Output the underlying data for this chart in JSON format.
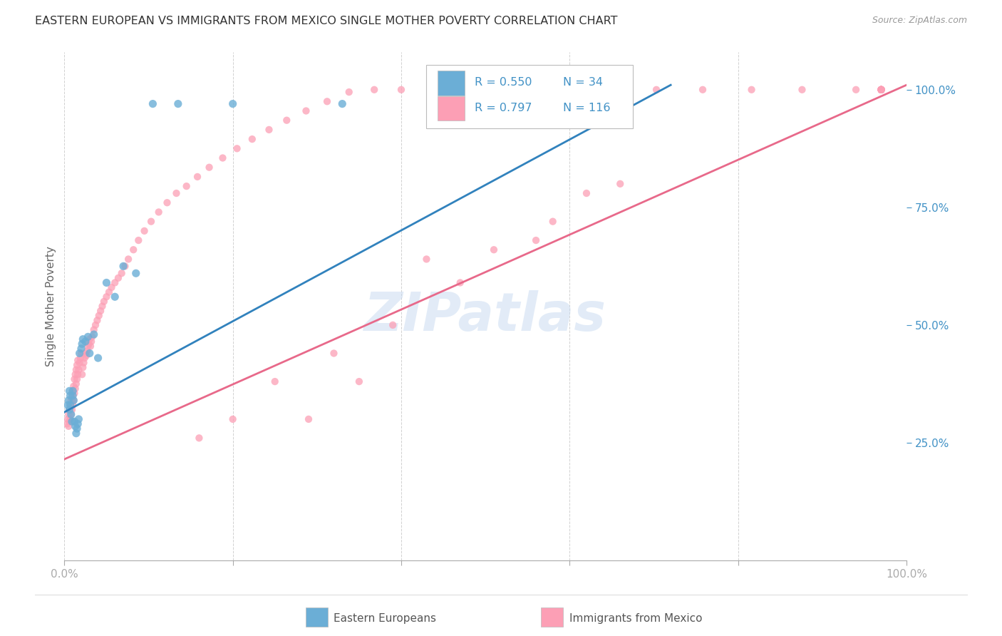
{
  "title": "EASTERN EUROPEAN VS IMMIGRANTS FROM MEXICO SINGLE MOTHER POVERTY CORRELATION CHART",
  "source": "Source: ZipAtlas.com",
  "ylabel": "Single Mother Poverty",
  "xlim": [
    0,
    1.0
  ],
  "ylim": [
    0,
    1.08
  ],
  "xtick_positions": [
    0.0,
    0.2,
    0.4,
    0.6,
    0.8,
    1.0
  ],
  "xticklabels": [
    "0.0%",
    "",
    "",
    "",
    "",
    "100.0%"
  ],
  "ytick_labels_right": [
    "25.0%",
    "50.0%",
    "75.0%",
    "100.0%"
  ],
  "ytick_values_right": [
    0.25,
    0.5,
    0.75,
    1.0
  ],
  "watermark": "ZIPatlas",
  "legend_r1": "R = 0.550",
  "legend_n1": "N = 34",
  "legend_r2": "R = 0.797",
  "legend_n2": "N = 116",
  "blue_color": "#6baed6",
  "pink_color": "#fc9fb5",
  "blue_line_color": "#3182bd",
  "pink_line_color": "#e8698a",
  "right_tick_color": "#4292c6",
  "grid_color": "#cccccc",
  "background_color": "#ffffff",
  "blue_line": {
    "x0": 0.0,
    "y0": 0.315,
    "x1": 0.72,
    "y1": 1.01
  },
  "pink_line": {
    "x0": 0.0,
    "y0": 0.215,
    "x1": 1.0,
    "y1": 1.01
  },
  "blue_x": [
    0.004,
    0.005,
    0.006,
    0.006,
    0.007,
    0.007,
    0.008,
    0.009,
    0.01,
    0.01,
    0.011,
    0.012,
    0.013,
    0.014,
    0.015,
    0.016,
    0.017,
    0.018,
    0.02,
    0.021,
    0.022,
    0.025,
    0.028,
    0.03,
    0.035,
    0.04,
    0.05,
    0.06,
    0.07,
    0.085,
    0.105,
    0.135,
    0.2,
    0.33
  ],
  "blue_y": [
    0.33,
    0.34,
    0.32,
    0.36,
    0.35,
    0.33,
    0.31,
    0.295,
    0.35,
    0.36,
    0.34,
    0.295,
    0.285,
    0.27,
    0.28,
    0.29,
    0.3,
    0.44,
    0.45,
    0.46,
    0.47,
    0.465,
    0.475,
    0.44,
    0.48,
    0.43,
    0.59,
    0.56,
    0.625,
    0.61,
    0.97,
    0.97,
    0.97,
    0.97
  ],
  "pink_x": [
    0.003,
    0.004,
    0.005,
    0.005,
    0.006,
    0.006,
    0.007,
    0.007,
    0.008,
    0.008,
    0.009,
    0.009,
    0.01,
    0.01,
    0.011,
    0.011,
    0.012,
    0.012,
    0.013,
    0.013,
    0.014,
    0.014,
    0.015,
    0.015,
    0.016,
    0.016,
    0.017,
    0.018,
    0.019,
    0.02,
    0.021,
    0.022,
    0.023,
    0.024,
    0.025,
    0.026,
    0.027,
    0.028,
    0.029,
    0.03,
    0.031,
    0.032,
    0.033,
    0.035,
    0.037,
    0.039,
    0.041,
    0.043,
    0.045,
    0.047,
    0.05,
    0.053,
    0.056,
    0.06,
    0.064,
    0.068,
    0.072,
    0.076,
    0.082,
    0.088,
    0.095,
    0.103,
    0.112,
    0.122,
    0.133,
    0.145,
    0.158,
    0.172,
    0.188,
    0.205,
    0.223,
    0.243,
    0.264,
    0.287,
    0.312,
    0.338,
    0.368,
    0.4,
    0.435,
    0.472,
    0.512,
    0.555,
    0.6,
    0.65,
    0.703,
    0.758,
    0.816,
    0.876,
    0.94,
    0.97,
    0.97,
    0.97,
    0.97,
    0.97,
    0.97,
    0.97,
    0.97,
    0.97,
    0.97,
    0.97,
    0.97,
    0.97,
    0.51,
    0.56,
    0.43,
    0.35,
    0.29,
    0.62,
    0.66,
    0.58,
    0.47,
    0.39,
    0.32,
    0.25,
    0.2,
    0.16
  ],
  "pink_y": [
    0.29,
    0.3,
    0.285,
    0.31,
    0.295,
    0.32,
    0.3,
    0.33,
    0.31,
    0.34,
    0.32,
    0.35,
    0.33,
    0.36,
    0.34,
    0.37,
    0.355,
    0.385,
    0.365,
    0.395,
    0.375,
    0.405,
    0.385,
    0.415,
    0.395,
    0.425,
    0.405,
    0.42,
    0.43,
    0.44,
    0.395,
    0.41,
    0.42,
    0.43,
    0.44,
    0.435,
    0.445,
    0.455,
    0.46,
    0.47,
    0.455,
    0.465,
    0.475,
    0.49,
    0.5,
    0.51,
    0.52,
    0.53,
    0.54,
    0.55,
    0.56,
    0.57,
    0.58,
    0.59,
    0.6,
    0.61,
    0.625,
    0.64,
    0.66,
    0.68,
    0.7,
    0.72,
    0.74,
    0.76,
    0.78,
    0.795,
    0.815,
    0.835,
    0.855,
    0.875,
    0.895,
    0.915,
    0.935,
    0.955,
    0.975,
    0.995,
    1.0,
    1.0,
    1.0,
    1.0,
    1.0,
    1.0,
    1.0,
    1.0,
    1.0,
    1.0,
    1.0,
    1.0,
    1.0,
    1.0,
    1.0,
    1.0,
    1.0,
    1.0,
    1.0,
    1.0,
    1.0,
    1.0,
    1.0,
    1.0,
    1.0,
    1.0,
    0.66,
    0.68,
    0.64,
    0.38,
    0.3,
    0.78,
    0.8,
    0.72,
    0.59,
    0.5,
    0.44,
    0.38,
    0.3,
    0.26
  ]
}
